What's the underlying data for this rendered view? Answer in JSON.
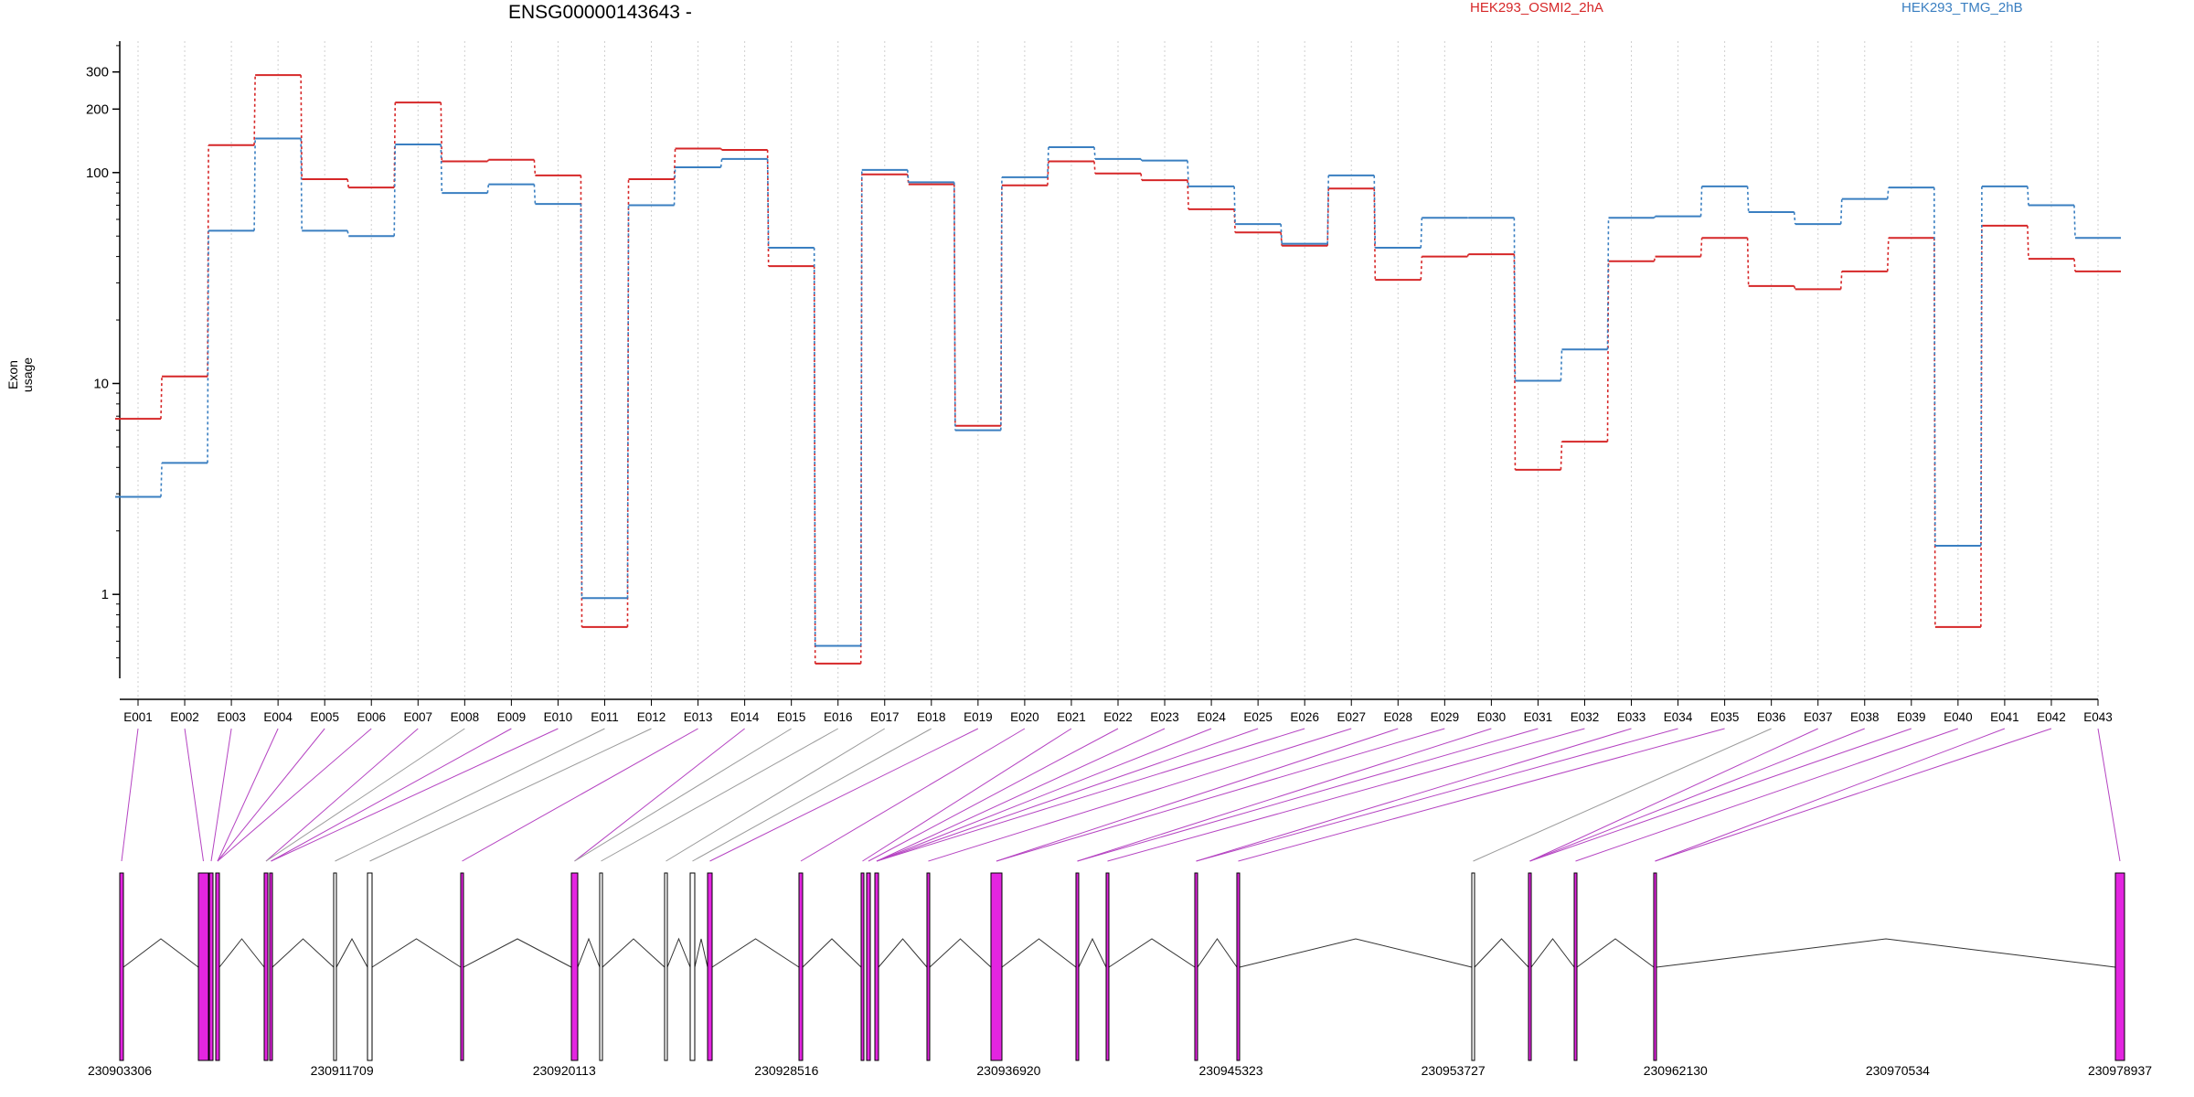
{
  "chart_data": {
    "type": "line",
    "title": "ENSG00000143643 -",
    "ylabel": "Exon usage",
    "xlabel": "",
    "yscale": "log",
    "ylim": [
      0.4,
      420
    ],
    "yticks": [
      1,
      10,
      100,
      200,
      300
    ],
    "legend_position": "top",
    "grid": "vertical dotted",
    "categories": [
      "E001",
      "E002",
      "E003",
      "E004",
      "E005",
      "E006",
      "E007",
      "E008",
      "E009",
      "E010",
      "E011",
      "E012",
      "E013",
      "E014",
      "E015",
      "E016",
      "E017",
      "E018",
      "E019",
      "E020",
      "E021",
      "E022",
      "E023",
      "E024",
      "E025",
      "E026",
      "E027",
      "E028",
      "E029",
      "E030",
      "E031",
      "E032",
      "E033",
      "E034",
      "E035",
      "E036",
      "E037",
      "E038",
      "E039",
      "E040",
      "E041",
      "E042",
      "E043"
    ],
    "series": [
      {
        "name": "HEK293_OSMI2_2hA",
        "color": "#d62728",
        "values": [
          6.8,
          10.8,
          135,
          290,
          93,
          85,
          215,
          113,
          115,
          97,
          0.7,
          93,
          130,
          128,
          36,
          0.47,
          98,
          88,
          6.3,
          87,
          113,
          99,
          92,
          67,
          52,
          45,
          84,
          31,
          40,
          41,
          3.9,
          5.3,
          38,
          40,
          49,
          29,
          28,
          34,
          49,
          0.7,
          56,
          39,
          34
        ]
      },
      {
        "name": "HEK293_TMG_2hB",
        "color": "#3a7fc1",
        "values": [
          2.9,
          4.2,
          53,
          145,
          53,
          50,
          136,
          80,
          88,
          71,
          0.96,
          70,
          106,
          116,
          44,
          0.57,
          103,
          90,
          6.0,
          95,
          132,
          116,
          114,
          86,
          57,
          46,
          97,
          44,
          61,
          61,
          10.3,
          14.5,
          61,
          62,
          86,
          65,
          57,
          75,
          85,
          1.7,
          86,
          70,
          49
        ]
      }
    ],
    "series_colors": {
      "up": "#e325e0",
      "line": "#000000"
    },
    "genomic_axis_labels": [
      "230903306",
      "230911709",
      "230920113",
      "230928516",
      "230936920",
      "230945323",
      "230953727",
      "230962130",
      "230970534",
      "230978937"
    ],
    "exon_highlight": [
      true,
      true,
      true,
      true,
      true,
      true,
      true,
      false,
      true,
      true,
      false,
      false,
      true,
      true,
      false,
      false,
      false,
      false,
      true,
      true,
      true,
      true,
      true,
      true,
      true,
      true,
      true,
      true,
      true,
      true,
      true,
      true,
      true,
      true,
      true,
      false,
      true,
      true,
      true,
      true,
      true,
      true,
      true
    ]
  }
}
